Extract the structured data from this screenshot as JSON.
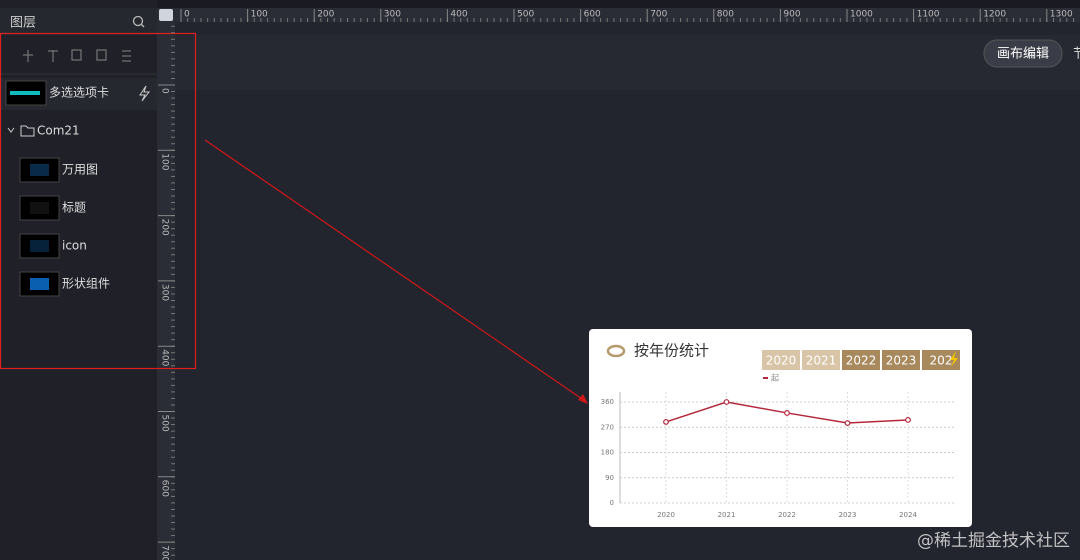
{
  "layers_panel": {
    "title": "图层",
    "items": [
      {
        "label": "多选选项卡"
      },
      {
        "label": "Com21",
        "children": [
          {
            "label": "万用图"
          },
          {
            "label": "标题"
          },
          {
            "label": "icon"
          },
          {
            "label": "形状组件"
          }
        ]
      }
    ]
  },
  "ruler": {
    "x_ticks": [
      0,
      100,
      200,
      300,
      400,
      500,
      600,
      700,
      800,
      900,
      1000,
      1100,
      1200,
      1300
    ],
    "y_ticks": [
      0,
      100,
      200,
      300,
      400,
      500,
      600,
      700
    ]
  },
  "toolbar": {
    "button": "画布编辑",
    "partial": "节"
  },
  "widget": {
    "title": "按年份统计",
    "tabs": [
      "2020",
      "2021",
      "2022",
      "2023",
      "202"
    ],
    "legend": "起",
    "chart_data": {
      "type": "line",
      "categories": [
        "2020",
        "2021",
        "2022",
        "2023",
        "2024"
      ],
      "values": [
        289,
        360,
        321,
        285,
        296
      ],
      "color": "#b4283c",
      "ylim": [
        0,
        360
      ],
      "yticks": [
        0,
        90,
        180,
        270,
        360
      ],
      "grid": true
    }
  },
  "watermark": "@稀土掘金技术社区"
}
